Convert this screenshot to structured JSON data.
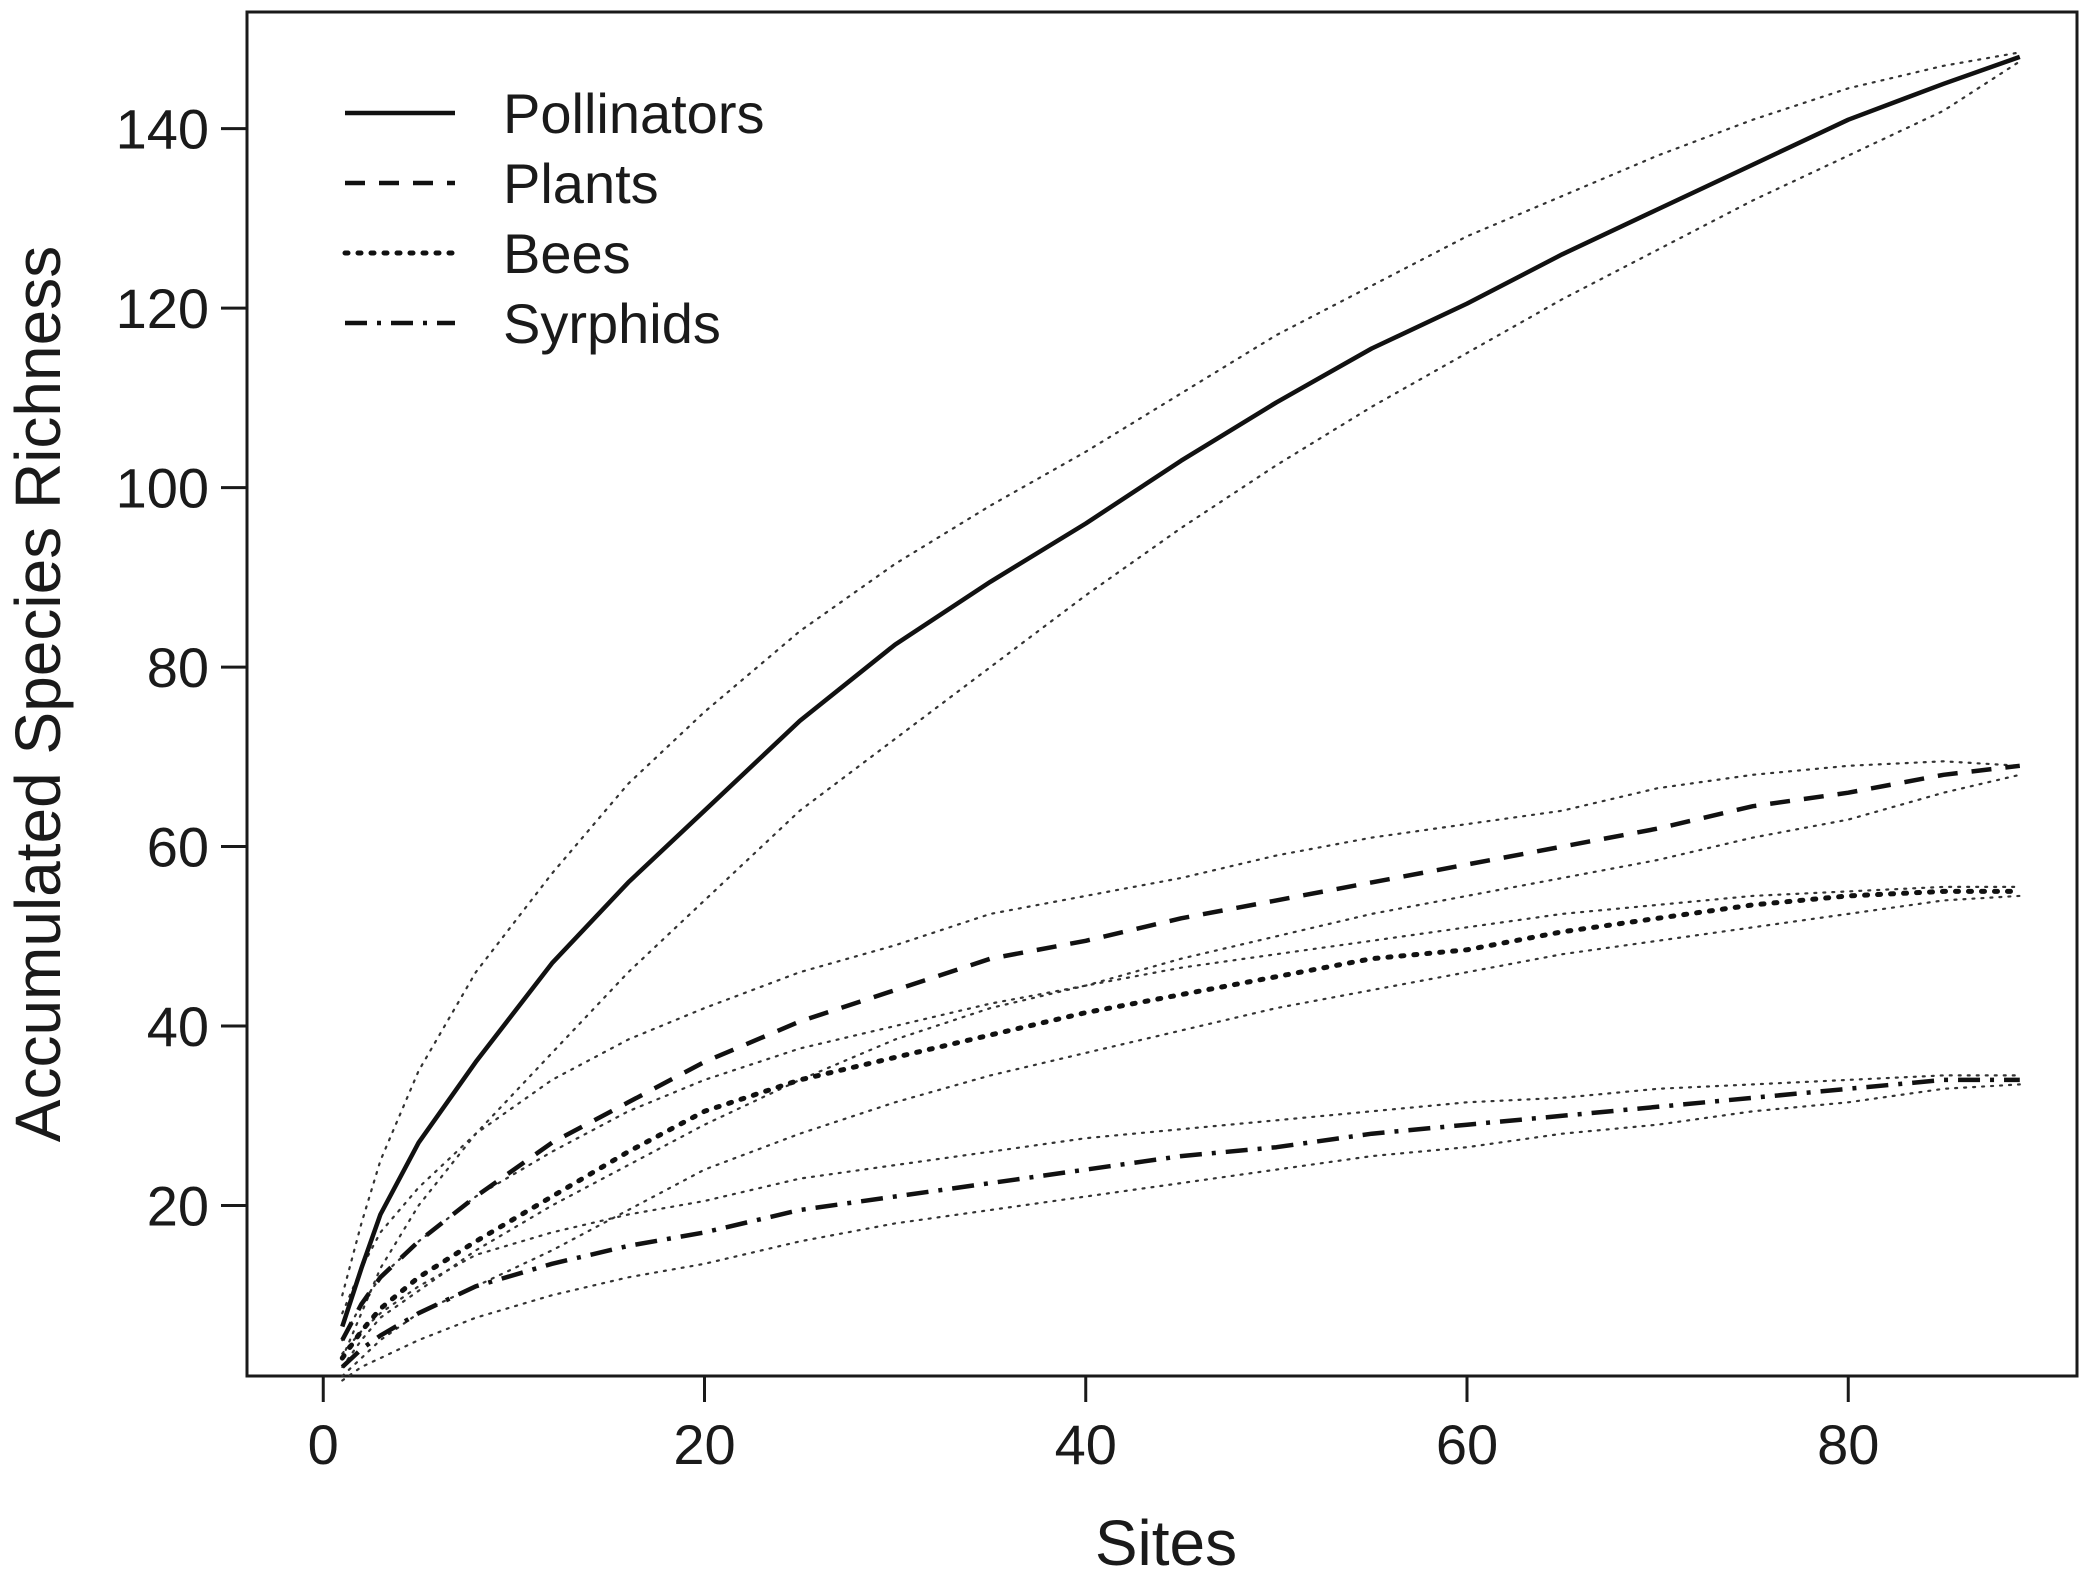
{
  "chart_data": {
    "type": "line",
    "title": "",
    "xlabel": "Sites",
    "ylabel": "Accumulated Species Richness",
    "xlim": [
      -4,
      92
    ],
    "ylim": [
      1,
      153
    ],
    "x_ticks": [
      0,
      20,
      40,
      60,
      80
    ],
    "y_ticks": [
      20,
      40,
      60,
      80,
      100,
      120,
      140
    ],
    "grid": false,
    "legend_position": "top-left",
    "legend": [
      {
        "label": "Pollinators",
        "style": "solid"
      },
      {
        "label": "Plants",
        "style": "dashed"
      },
      {
        "label": "Bees",
        "style": "dotted"
      },
      {
        "label": "Syrphids",
        "style": "dashdot"
      }
    ],
    "x": [
      1,
      2,
      3,
      5,
      8,
      12,
      16,
      20,
      25,
      30,
      35,
      40,
      45,
      50,
      55,
      60,
      65,
      70,
      75,
      80,
      85,
      89
    ],
    "series": [
      {
        "name": "Pollinators",
        "style": "solid",
        "color": "#111111",
        "values": [
          6.5,
          13,
          19,
          27,
          36,
          47,
          56,
          64,
          74,
          82.5,
          89.5,
          96,
          103,
          109.5,
          115.5,
          120.5,
          126,
          131,
          136,
          141,
          145,
          148
        ],
        "ci_upper": [
          10,
          18,
          25,
          35,
          46,
          57,
          67,
          75,
          84,
          91.5,
          98,
          104,
          110.5,
          117,
          122.5,
          128,
          132.5,
          137,
          141,
          144.5,
          147,
          148.5
        ],
        "ci_lower": [
          3,
          8,
          13,
          20,
          28,
          37,
          46,
          54,
          64,
          72,
          80,
          88,
          95.5,
          102.5,
          109,
          115,
          121,
          126.5,
          132,
          137,
          142,
          147.5
        ]
      },
      {
        "name": "Plants",
        "style": "dashed",
        "color": "#111111",
        "values": [
          5,
          9,
          12,
          16,
          21,
          27,
          31.5,
          36,
          40.5,
          44,
          47.5,
          49.5,
          52,
          54,
          56,
          58,
          60,
          62,
          64.5,
          66,
          68,
          69
        ],
        "ci_upper": [
          8,
          13,
          17,
          22,
          28,
          34,
          38.5,
          42,
          46,
          49,
          52.5,
          54.5,
          56.5,
          59,
          61,
          62.5,
          64,
          66.5,
          68,
          69,
          69.5,
          69
        ],
        "ci_lower": [
          2,
          5,
          7.5,
          10.5,
          15,
          20,
          24.5,
          29,
          34,
          38.5,
          42,
          44.5,
          47.5,
          50,
          52.5,
          54.5,
          56.5,
          58.5,
          61,
          63,
          66,
          68
        ]
      },
      {
        "name": "Bees",
        "style": "dotted",
        "color": "#111111",
        "values": [
          3,
          6,
          8.5,
          12,
          16,
          21,
          26,
          30.5,
          34,
          36.5,
          39,
          41.5,
          43.5,
          45.5,
          47.5,
          48.5,
          50.5,
          52,
          53.5,
          54.5,
          55,
          55
        ],
        "ci_upper": [
          5,
          9,
          12,
          16,
          21,
          26,
          30.5,
          34,
          37.5,
          40,
          42.5,
          44.5,
          46.5,
          48,
          49.5,
          51,
          52.5,
          53.5,
          54.5,
          55,
          55.5,
          55.5
        ],
        "ci_lower": [
          1,
          3,
          5,
          8,
          11,
          15,
          19.5,
          24,
          28,
          31.5,
          34.5,
          37,
          39.5,
          42,
          44,
          46,
          48,
          49.5,
          51,
          52.5,
          54,
          54.5
        ]
      },
      {
        "name": "Syrphids",
        "style": "dashdot",
        "color": "#111111",
        "values": [
          2,
          4,
          5.5,
          8,
          11,
          13.5,
          15.5,
          17,
          19.5,
          21,
          22.5,
          24,
          25.5,
          26.5,
          28,
          29,
          30,
          31,
          32,
          33,
          34,
          34
        ],
        "ci_upper": [
          3.5,
          6,
          8,
          11,
          14.5,
          17,
          19,
          20.5,
          23,
          24.5,
          26,
          27.5,
          28.5,
          29.5,
          30.5,
          31.5,
          32,
          33,
          33.5,
          34,
          34.5,
          34.5
        ],
        "ci_lower": [
          0.5,
          2,
          3,
          5,
          7.5,
          10,
          12,
          13.5,
          16,
          18,
          19.5,
          21,
          22.5,
          24,
          25.5,
          26.5,
          28,
          29,
          30.5,
          31.5,
          33,
          33.5
        ]
      }
    ]
  }
}
